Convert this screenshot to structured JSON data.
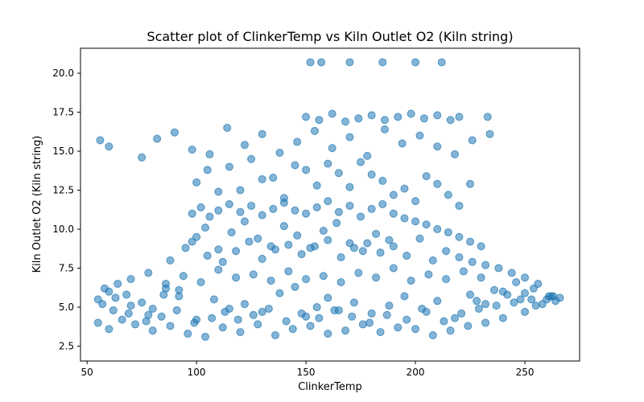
{
  "chart_data": {
    "type": "scatter",
    "title": "Scatter plot of ClinkerTemp vs Kiln Outlet O2 (Kiln string)",
    "xlabel": "ClinkerTemp",
    "ylabel": "Kiln Outlet O2 (Kiln string)",
    "xlim": [
      47,
      275
    ],
    "ylim": [
      1.55,
      21.6
    ],
    "xticks": [
      50,
      100,
      150,
      200,
      250
    ],
    "yticks": [
      2.5,
      5.0,
      7.5,
      10.0,
      12.5,
      15.0,
      17.5,
      20.0
    ],
    "grid": false,
    "point_color": "#1f77b4",
    "point_alpha": 0.55,
    "series": [
      {
        "x": [
          55,
          58,
          62,
          70,
          78,
          85,
          92,
          100,
          108,
          115,
          122,
          130,
          138,
          145,
          150,
          155,
          160,
          165,
          172,
          180,
          188,
          195,
          203,
          210,
          218,
          225,
          232,
          240,
          248,
          255,
          262,
          266,
          55,
          60,
          66,
          72,
          80,
          88,
          96,
          104,
          112,
          120,
          128,
          136,
          144,
          152,
          160,
          168,
          176,
          184,
          192,
          200,
          208,
          216,
          224,
          232,
          240,
          250,
          258,
          264,
          70,
          78,
          86,
          94,
          102,
          110,
          118,
          126,
          134,
          142,
          150,
          158,
          166,
          174,
          182,
          190,
          198,
          206,
          214,
          222,
          230,
          98,
          104,
          110,
          116,
          122,
          128,
          134,
          140,
          146,
          152,
          158,
          164,
          170,
          176,
          182,
          188,
          120,
          130,
          140,
          150,
          160,
          170,
          180,
          190,
          200,
          210,
          220,
          56,
          60,
          75,
          82,
          90,
          98,
          106,
          114,
          122,
          130,
          138,
          146,
          154,
          162,
          170,
          178,
          186,
          194,
          202,
          210,
          218,
          226,
          234,
          150,
          156,
          162,
          168,
          174,
          180,
          186,
          192,
          198,
          204,
          210,
          216,
          220,
          152,
          157,
          170,
          185,
          200,
          212,
          60,
          64,
          68,
          75,
          80,
          86,
          92,
          228,
          236,
          242,
          246,
          250,
          254,
          260,
          263,
          233,
          88,
          95,
          100,
          105,
          112,
          118,
          124,
          130,
          136,
          142,
          148,
          154,
          160,
          166,
          172,
          178,
          184,
          190,
          196,
          202,
          208,
          214,
          220,
          226,
          232,
          238,
          244,
          250,
          256,
          98,
          102,
          106,
          110,
          115,
          120,
          125,
          130,
          135,
          140,
          145,
          150,
          155,
          160,
          165,
          170,
          175,
          180,
          185,
          190,
          195,
          200,
          205,
          210,
          215,
          220,
          225,
          230,
          57,
          63,
          69,
          77,
          84,
          91,
          99,
          107,
          113,
          119,
          126,
          133,
          141,
          148,
          156,
          163,
          171,
          179,
          187,
          196,
          205,
          213,
          221,
          229,
          237,
          245,
          253,
          261,
          100,
          105,
          110,
          115,
          125,
          135,
          145,
          155,
          165,
          175,
          185,
          195,
          205,
          215,
          225
        ],
        "y": [
          5.5,
          6.2,
          4.8,
          5.1,
          4.5,
          5.8,
          6.1,
          4.2,
          5.5,
          4.9,
          5.2,
          4.7,
          5.9,
          6.3,
          4.4,
          5.0,
          5.6,
          4.8,
          5.3,
          4.6,
          5.1,
          5.7,
          4.9,
          5.4,
          4.3,
          5.8,
          5.2,
          6.0,
          5.5,
          5.1,
          5.7,
          5.6,
          4.0,
          3.6,
          4.2,
          3.9,
          3.5,
          3.8,
          3.3,
          3.1,
          3.7,
          3.4,
          3.9,
          3.2,
          3.6,
          3.8,
          3.3,
          3.5,
          3.9,
          3.4,
          3.7,
          3.6,
          3.2,
          3.5,
          3.8,
          4.0,
          4.3,
          4.7,
          5.2,
          5.4,
          6.8,
          7.2,
          6.5,
          7.0,
          6.6,
          7.4,
          6.9,
          7.1,
          6.7,
          7.3,
          6.8,
          7.0,
          6.6,
          7.2,
          6.9,
          7.5,
          6.7,
          7.1,
          6.8,
          7.3,
          6.9,
          9.2,
          10.1,
          8.7,
          9.8,
          10.5,
          9.4,
          8.9,
          10.2,
          9.6,
          8.8,
          9.9,
          10.4,
          9.1,
          8.6,
          9.7,
          9.3,
          12.5,
          13.2,
          12.0,
          13.8,
          14.2,
          12.7,
          13.5,
          12.2,
          11.8,
          12.9,
          11.5,
          15.7,
          15.3,
          14.6,
          15.8,
          16.2,
          15.1,
          14.8,
          16.5,
          15.4,
          16.1,
          14.9,
          15.6,
          16.3,
          15.2,
          15.9,
          14.7,
          16.4,
          15.5,
          16.0,
          15.3,
          14.8,
          15.7,
          16.1,
          17.2,
          17.0,
          17.4,
          16.9,
          17.1,
          17.3,
          17.0,
          17.2,
          17.4,
          17.1,
          17.3,
          17.0,
          17.2,
          20.7,
          20.7,
          20.7,
          20.7,
          20.7,
          20.7,
          6.0,
          6.5,
          5.8,
          5.3,
          4.9,
          6.2,
          5.7,
          5.4,
          6.1,
          5.8,
          6.6,
          5.9,
          6.2,
          5.5,
          5.7,
          17.2,
          8.0,
          8.8,
          9.5,
          8.3,
          7.9,
          8.6,
          9.2,
          8.1,
          8.7,
          9.0,
          8.4,
          8.9,
          9.3,
          8.2,
          8.8,
          9.1,
          8.5,
          8.9,
          8.3,
          9.4,
          8.0,
          8.6,
          8.2,
          7.9,
          7.7,
          7.5,
          7.2,
          6.9,
          6.5,
          11.0,
          11.4,
          10.8,
          11.2,
          11.6,
          11.1,
          11.5,
          10.9,
          11.3,
          11.7,
          11.2,
          11.0,
          11.4,
          11.8,
          11.1,
          11.5,
          10.8,
          11.3,
          11.6,
          11.0,
          10.7,
          10.5,
          10.3,
          10.0,
          9.8,
          9.5,
          9.2,
          8.9,
          5.2,
          5.6,
          4.6,
          4.1,
          4.4,
          4.8,
          4.0,
          4.3,
          4.7,
          4.2,
          4.5,
          4.9,
          4.1,
          4.6,
          4.3,
          4.8,
          4.4,
          4.0,
          4.5,
          4.2,
          4.7,
          4.1,
          4.6,
          4.9,
          5.1,
          5.3,
          5.5,
          5.7,
          13.0,
          13.8,
          12.4,
          14.0,
          14.5,
          13.3,
          14.1,
          12.8,
          13.6,
          14.3,
          13.1,
          12.6,
          13.4,
          12.2,
          12.9
        ]
      }
    ]
  }
}
